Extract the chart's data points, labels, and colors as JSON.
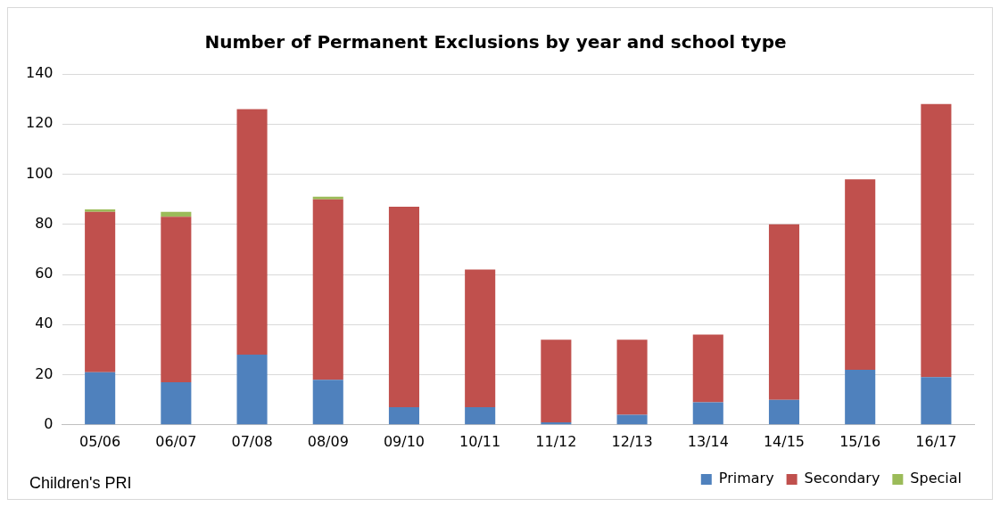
{
  "chart_data": {
    "type": "bar",
    "title": "Number of Permanent Exclusions by year and school type",
    "categories": [
      "05/06",
      "06/07",
      "07/08",
      "08/09",
      "09/10",
      "10/11",
      "11/12",
      "12/13",
      "13/14",
      "14/15",
      "15/16",
      "16/17"
    ],
    "series": [
      {
        "name": "Primary",
        "color": "#4f81bd",
        "values": [
          21,
          17,
          28,
          18,
          7,
          7,
          1,
          4,
          9,
          10,
          22,
          19
        ]
      },
      {
        "name": "Secondary",
        "color": "#c0504d",
        "values": [
          64,
          66,
          98,
          72,
          80,
          55,
          33,
          30,
          27,
          70,
          76,
          109
        ]
      },
      {
        "name": "Special",
        "color": "#9bbb59",
        "values": [
          1,
          2,
          0,
          1,
          0,
          0,
          0,
          0,
          0,
          0,
          0,
          0
        ]
      }
    ],
    "stacked": true,
    "ylim": [
      0,
      140
    ],
    "yticks": [
      0,
      20,
      40,
      60,
      80,
      100,
      120,
      140
    ],
    "grid": "y",
    "legend": "bottom right",
    "annotations": [
      "Children's PRI"
    ]
  }
}
